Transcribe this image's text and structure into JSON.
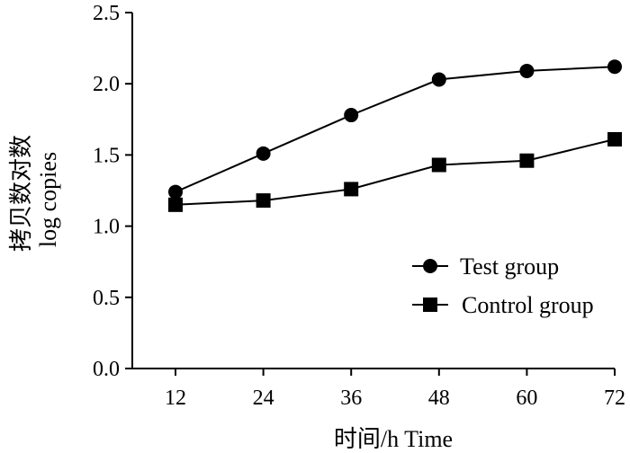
{
  "chart_data": {
    "type": "line",
    "title": "",
    "xlabel": "时间/h Time",
    "ylabel_cn": "拷贝数对数",
    "ylabel_en": "log copies",
    "x": [
      12,
      24,
      36,
      48,
      60,
      72
    ],
    "x_tick_labels": [
      "12",
      "24",
      "36",
      "48",
      "60",
      "72"
    ],
    "ylim": [
      0.0,
      2.5
    ],
    "y_ticks": [
      0.0,
      0.5,
      1.0,
      1.5,
      2.0,
      2.5
    ],
    "y_tick_labels": [
      "0.0",
      "0.5",
      "1.0",
      "1.5",
      "2.0",
      "2.5"
    ],
    "grid": false,
    "legend_position": "bottom-right",
    "series": [
      {
        "name": "Test group",
        "marker": "circle",
        "color": "#000000",
        "values": [
          1.24,
          1.51,
          1.78,
          2.03,
          2.09,
          2.12
        ]
      },
      {
        "name": "Control group",
        "marker": "square",
        "color": "#000000",
        "values": [
          1.15,
          1.18,
          1.26,
          1.43,
          1.46,
          1.61
        ]
      }
    ]
  }
}
